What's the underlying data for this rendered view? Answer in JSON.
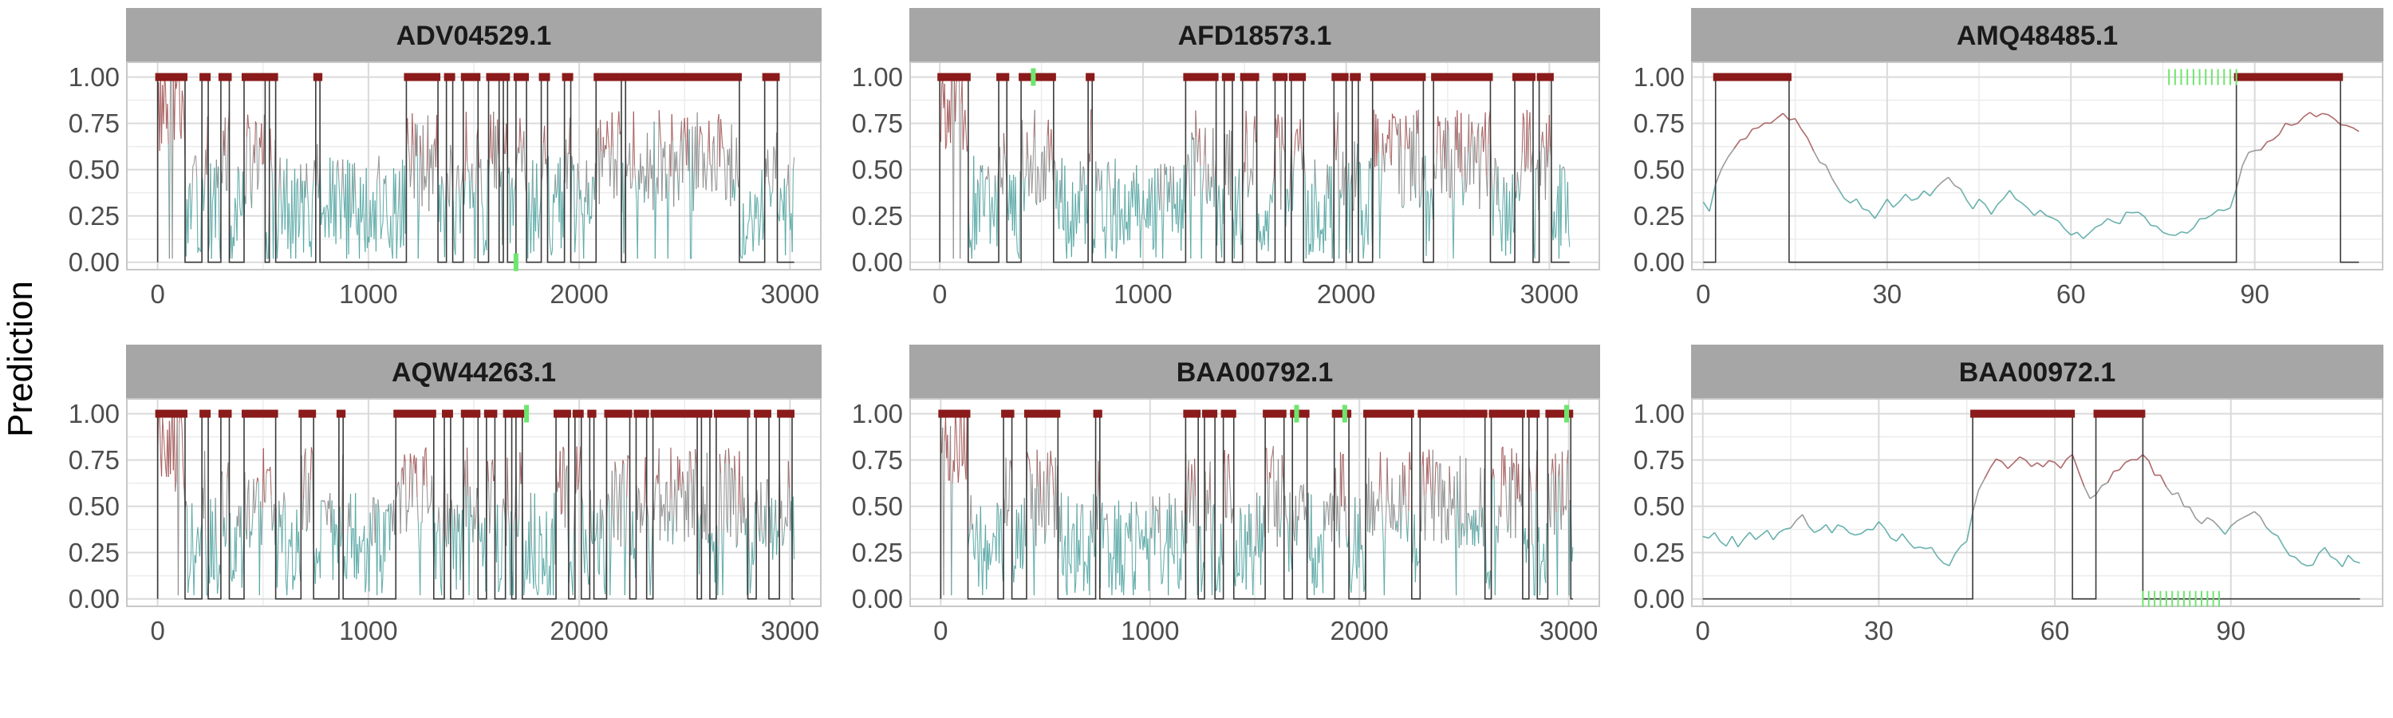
{
  "ylabel": "Prediction",
  "colors": {
    "strip_bg": "#a6a6a6",
    "grid_major": "#dadada",
    "grid_minor": "#ececec",
    "panel_border": "#c8c8c8",
    "binary_line": "#3a3a3a",
    "prob_high": "#a05050",
    "prob_low": "#4fa3a0",
    "prob_mid": "#8a8a8a",
    "predicted_mark": "#8b1a1a",
    "reference_mark": "#6ee66e"
  },
  "chart_data": [
    {
      "type": "line",
      "title": "ADV04529.1",
      "xlim": [
        -150,
        3150
      ],
      "ylim": [
        -0.04,
        1.08
      ],
      "xticks": [
        0,
        1000,
        2000,
        3000
      ],
      "xtick_labels": [
        "0",
        "1000",
        "2000",
        "3000"
      ],
      "yticks": [
        0,
        0.25,
        0.5,
        0.75,
        1
      ],
      "ytick_labels": [
        "0.00",
        "0.25",
        "0.50",
        "0.75",
        "1.00"
      ],
      "sequence_length": 3020,
      "predicted_segments": [
        [
          0,
          130
        ],
        [
          210,
          240
        ],
        [
          300,
          340
        ],
        [
          410,
          510
        ],
        [
          530,
          560
        ],
        [
          750,
          770
        ],
        [
          1180,
          1330
        ],
        [
          1370,
          1400
        ],
        [
          1450,
          1520
        ],
        [
          1570,
          1620
        ],
        [
          1640,
          1660
        ],
        [
          1700,
          1750
        ],
        [
          1820,
          1850
        ],
        [
          1930,
          1960
        ],
        [
          2080,
          2200
        ],
        [
          2220,
          2760
        ],
        [
          2880,
          2940
        ]
      ],
      "reference_marks": [
        {
          "x": 1700,
          "y": 0
        }
      ]
    },
    {
      "type": "line",
      "title": "AFD18573.1",
      "xlim": [
        -150,
        3250
      ],
      "ylim": [
        -0.04,
        1.08
      ],
      "xticks": [
        0,
        1000,
        2000,
        3000
      ],
      "xtick_labels": [
        "0",
        "1000",
        "2000",
        "3000"
      ],
      "yticks": [
        0,
        0.25,
        0.5,
        0.75,
        1
      ],
      "ytick_labels": [
        "0.00",
        "0.25",
        "0.50",
        "0.75",
        "1.00"
      ],
      "sequence_length": 3100,
      "predicted_segments": [
        [
          0,
          140
        ],
        [
          290,
          330
        ],
        [
          400,
          560
        ],
        [
          730,
          750
        ],
        [
          1210,
          1360
        ],
        [
          1400,
          1440
        ],
        [
          1490,
          1560
        ],
        [
          1650,
          1700
        ],
        [
          1730,
          1790
        ],
        [
          1940,
          2000
        ],
        [
          2030,
          2060
        ],
        [
          2130,
          2380
        ],
        [
          2430,
          2710
        ],
        [
          2830,
          2920
        ],
        [
          2950,
          3010
        ]
      ],
      "reference_marks": [
        {
          "x": 460,
          "y": 1
        }
      ]
    },
    {
      "type": "line",
      "title": "AMQ48485.1",
      "xlim": [
        -2,
        111
      ],
      "ylim": [
        -0.04,
        1.08
      ],
      "xticks": [
        0,
        30,
        60,
        90
      ],
      "xtick_labels": [
        "0",
        "30",
        "60",
        "90"
      ],
      "yticks": [
        0,
        0.25,
        0.5,
        0.75,
        1
      ],
      "ytick_labels": [
        "0.00",
        "0.25",
        "0.50",
        "0.75",
        "1.00"
      ],
      "sequence_length": 107,
      "predicted_segments": [
        [
          2,
          14
        ],
        [
          87,
          104
        ]
      ],
      "reference_segments": [
        [
          76,
          87
        ]
      ],
      "reference_y": 1
    },
    {
      "type": "line",
      "title": "AQW44263.1",
      "xlim": [
        -150,
        3150
      ],
      "ylim": [
        -0.04,
        1.08
      ],
      "xticks": [
        0,
        1000,
        2000,
        3000
      ],
      "xtick_labels": [
        "0",
        "1000",
        "2000",
        "3000"
      ],
      "yticks": [
        0,
        0.25,
        0.5,
        0.75,
        1
      ],
      "ytick_labels": [
        "0.00",
        "0.25",
        "0.50",
        "0.75",
        "1.00"
      ],
      "sequence_length": 3020,
      "predicted_segments": [
        [
          0,
          130
        ],
        [
          210,
          240
        ],
        [
          300,
          340
        ],
        [
          410,
          560
        ],
        [
          680,
          740
        ],
        [
          860,
          880
        ],
        [
          1130,
          1310
        ],
        [
          1360,
          1390
        ],
        [
          1450,
          1520
        ],
        [
          1560,
          1600
        ],
        [
          1650,
          1680
        ],
        [
          1700,
          1730
        ],
        [
          1890,
          1950
        ],
        [
          1980,
          2010
        ],
        [
          2050,
          2070
        ],
        [
          2130,
          2240
        ],
        [
          2270,
          2320
        ],
        [
          2350,
          2560
        ],
        [
          2580,
          2620
        ],
        [
          2650,
          2800
        ],
        [
          2840,
          2900
        ],
        [
          2950,
          3010
        ]
      ],
      "reference_marks": [
        {
          "x": 1750,
          "y": 1
        }
      ]
    },
    {
      "type": "line",
      "title": "BAA00792.1",
      "xlim": [
        -150,
        3150
      ],
      "ylim": [
        -0.04,
        1.08
      ],
      "xticks": [
        0,
        1000,
        2000,
        3000
      ],
      "xtick_labels": [
        "0",
        "1000",
        "2000",
        "3000"
      ],
      "yticks": [
        0,
        0.25,
        0.5,
        0.75,
        1
      ],
      "ytick_labels": [
        "0.00",
        "0.25",
        "0.50",
        "0.75",
        "1.00"
      ],
      "sequence_length": 3020,
      "predicted_segments": [
        [
          0,
          130
        ],
        [
          300,
          340
        ],
        [
          410,
          560
        ],
        [
          740,
          760
        ],
        [
          1170,
          1230
        ],
        [
          1260,
          1310
        ],
        [
          1350,
          1400
        ],
        [
          1550,
          1640
        ],
        [
          1680,
          1750
        ],
        [
          1880,
          1950
        ],
        [
          2030,
          2250
        ],
        [
          2290,
          2600
        ],
        [
          2630,
          2780
        ],
        [
          2810,
          2850
        ],
        [
          2900,
          3010
        ]
      ],
      "reference_marks": [
        {
          "x": 1700,
          "y": 1
        },
        {
          "x": 1930,
          "y": 1
        },
        {
          "x": 2990,
          "y": 1
        }
      ]
    },
    {
      "type": "line",
      "title": "BAA00972.1",
      "xlim": [
        -2,
        116
      ],
      "ylim": [
        -0.04,
        1.08
      ],
      "xticks": [
        0,
        30,
        60,
        90
      ],
      "xtick_labels": [
        "0",
        "30",
        "60",
        "90"
      ],
      "yticks": [
        0,
        0.25,
        0.5,
        0.75,
        1
      ],
      "ytick_labels": [
        "0.00",
        "0.25",
        "0.50",
        "0.75",
        "1.00"
      ],
      "sequence_length": 112,
      "predicted_segments": [
        [
          46,
          63
        ],
        [
          67,
          75
        ]
      ],
      "reference_segments": [
        [
          75,
          88
        ]
      ],
      "reference_y": 0
    }
  ]
}
